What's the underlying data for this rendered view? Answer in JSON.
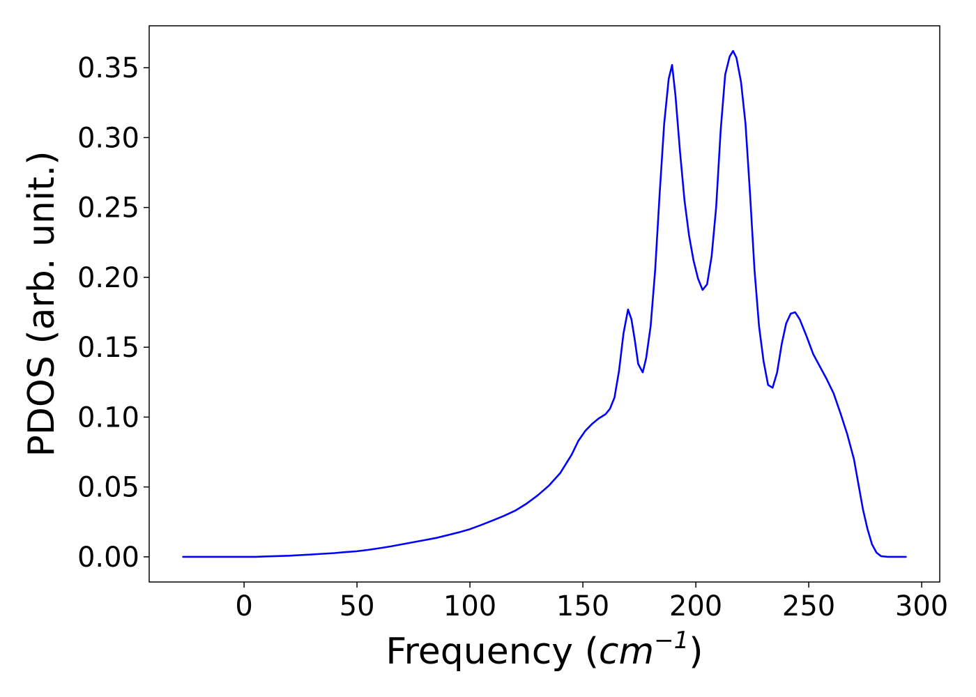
{
  "chart_data": {
    "type": "line",
    "title": "",
    "xlabel": "Frequency",
    "xlabel_unit": "cm",
    "xlabel_unit_exponent": "−1",
    "ylabel": "PDOS (arb. unit.)",
    "xlim": [
      -42,
      308
    ],
    "ylim": [
      -0.018,
      0.38
    ],
    "xticks": [
      0,
      50,
      100,
      150,
      200,
      250,
      300
    ],
    "xtick_labels": [
      "0",
      "50",
      "100",
      "150",
      "200",
      "250",
      "300"
    ],
    "yticks": [
      0.0,
      0.05,
      0.1,
      0.15,
      0.2,
      0.25,
      0.3,
      0.35
    ],
    "ytick_labels": [
      "0.00",
      "0.05",
      "0.10",
      "0.15",
      "0.20",
      "0.25",
      "0.30",
      "0.35"
    ],
    "grid": false,
    "legend": "none",
    "series": [
      {
        "color": "#0000ff",
        "points": [
          [
            -27,
            0.0
          ],
          [
            0,
            0.0
          ],
          [
            5,
            0.0
          ],
          [
            10,
            0.0003
          ],
          [
            20,
            0.0008
          ],
          [
            30,
            0.0017
          ],
          [
            40,
            0.0027
          ],
          [
            45,
            0.0034
          ],
          [
            50,
            0.004
          ],
          [
            55,
            0.005
          ],
          [
            60,
            0.0062
          ],
          [
            65,
            0.0075
          ],
          [
            70,
            0.009
          ],
          [
            75,
            0.0105
          ],
          [
            80,
            0.012
          ],
          [
            85,
            0.0135
          ],
          [
            90,
            0.0155
          ],
          [
            95,
            0.0175
          ],
          [
            100,
            0.0198
          ],
          [
            105,
            0.0228
          ],
          [
            110,
            0.026
          ],
          [
            115,
            0.0293
          ],
          [
            120,
            0.033
          ],
          [
            125,
            0.038
          ],
          [
            130,
            0.044
          ],
          [
            135,
            0.051
          ],
          [
            140,
            0.06
          ],
          [
            145,
            0.073
          ],
          [
            148,
            0.083
          ],
          [
            151,
            0.09
          ],
          [
            154,
            0.095
          ],
          [
            157,
            0.099
          ],
          [
            160,
            0.102
          ],
          [
            162,
            0.106
          ],
          [
            164,
            0.114
          ],
          [
            166,
            0.133
          ],
          [
            168,
            0.16
          ],
          [
            170,
            0.177
          ],
          [
            171.5,
            0.17
          ],
          [
            173,
            0.155
          ],
          [
            174.5,
            0.138
          ],
          [
            176.5,
            0.132
          ],
          [
            178,
            0.142
          ],
          [
            180,
            0.165
          ],
          [
            182,
            0.205
          ],
          [
            184,
            0.26
          ],
          [
            186,
            0.31
          ],
          [
            188,
            0.342
          ],
          [
            189.5,
            0.352
          ],
          [
            191,
            0.33
          ],
          [
            193,
            0.29
          ],
          [
            195,
            0.255
          ],
          [
            197,
            0.23
          ],
          [
            199,
            0.212
          ],
          [
            201,
            0.199
          ],
          [
            203,
            0.191
          ],
          [
            205,
            0.195
          ],
          [
            207,
            0.215
          ],
          [
            209,
            0.25
          ],
          [
            211,
            0.305
          ],
          [
            213,
            0.345
          ],
          [
            215,
            0.358
          ],
          [
            216.5,
            0.362
          ],
          [
            218,
            0.357
          ],
          [
            220,
            0.34
          ],
          [
            222,
            0.31
          ],
          [
            224,
            0.26
          ],
          [
            226,
            0.205
          ],
          [
            228,
            0.165
          ],
          [
            230,
            0.14
          ],
          [
            232,
            0.123
          ],
          [
            234,
            0.121
          ],
          [
            236,
            0.132
          ],
          [
            238,
            0.152
          ],
          [
            240,
            0.167
          ],
          [
            242,
            0.174
          ],
          [
            244,
            0.175
          ],
          [
            246,
            0.17
          ],
          [
            249,
            0.158
          ],
          [
            252,
            0.145
          ],
          [
            255,
            0.136
          ],
          [
            258,
            0.127
          ],
          [
            261,
            0.117
          ],
          [
            264,
            0.103
          ],
          [
            267,
            0.088
          ],
          [
            270,
            0.07
          ],
          [
            272,
            0.052
          ],
          [
            274,
            0.034
          ],
          [
            276,
            0.02
          ],
          [
            278,
            0.009
          ],
          [
            280,
            0.003
          ],
          [
            282,
            0.0005
          ],
          [
            285,
            0.0
          ],
          [
            290,
            0.0
          ],
          [
            293,
            0.0
          ]
        ]
      }
    ]
  }
}
